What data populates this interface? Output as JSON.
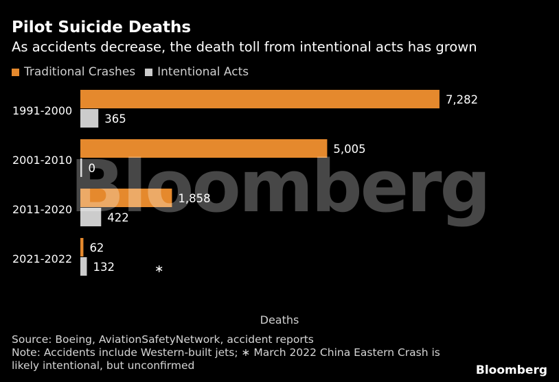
{
  "title": "Pilot Suicide Deaths",
  "subtitle": "As accidents decrease, the death toll from intentional acts has grown",
  "footer": {
    "source": "Source: Boeing, AviationSafetyNetwork, accident reports",
    "note_line1": "Note: Accidents include Western-built jets; ∗ March 2022 China Eastern Crash is",
    "note_line2": "likely intentional, but unconfirmed"
  },
  "logo": "Bloomberg",
  "watermark": "Bloomberg",
  "colors": {
    "traditional": "#e5892d",
    "intentional": "#cccccc",
    "background": "#000000"
  },
  "chart_data": {
    "type": "bar",
    "orientation": "horizontal",
    "categories": [
      "1991-2000",
      "2001-2010",
      "2011-2020",
      "2021-2022"
    ],
    "series": [
      {
        "name": "Traditional Crashes",
        "values": [
          7282,
          5005,
          1858,
          62
        ],
        "labels": [
          "7,282",
          "5,005",
          "1,858",
          "62"
        ]
      },
      {
        "name": "Intentional Acts",
        "values": [
          365,
          0,
          422,
          132
        ],
        "labels": [
          "365",
          "0",
          "422",
          "132"
        ]
      }
    ],
    "xlabel": "Deaths",
    "xlim": [
      0,
      8000
    ],
    "grid": false,
    "legend": "top-left",
    "annotation": {
      "category": "2021-2022",
      "series": "Intentional Acts",
      "text": "∗"
    }
  }
}
